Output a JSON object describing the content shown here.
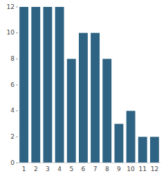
{
  "chart_data": {
    "type": "bar",
    "categories": [
      "1",
      "2",
      "3",
      "4",
      "5",
      "6",
      "7",
      "8",
      "9",
      "10",
      "11",
      "12"
    ],
    "values": [
      12,
      12,
      12,
      12,
      8,
      10,
      10,
      8,
      3,
      4,
      2,
      2
    ],
    "color": "#2e6383",
    "ylim": [
      0,
      12
    ],
    "yticks": [
      0,
      2,
      4,
      6,
      8,
      10,
      12
    ],
    "grid": false
  }
}
